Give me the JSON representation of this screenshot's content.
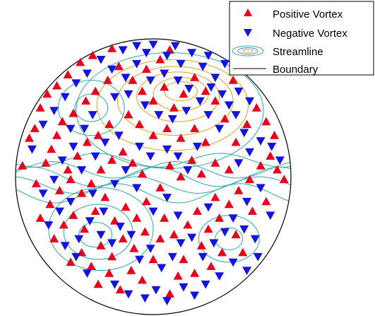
{
  "chart_data": {
    "type": "scatter",
    "title": "",
    "xlabel": "",
    "ylabel": "",
    "grid": false,
    "legend_position": "top-right",
    "boundary": {
      "shape": "circle",
      "center": [
        0,
        0
      ],
      "radius": 1.0
    },
    "legend": {
      "positive": "Positive Vortex",
      "negative": "Negative Vortex",
      "streamline": "Streamline",
      "boundary": "Boundary"
    },
    "colors": {
      "positive": "#e8001a",
      "negative": "#1414dc",
      "boundary": "#000000",
      "streamline_cool": "#2fa7a7",
      "streamline_warm": "#e0a020"
    },
    "series": [
      {
        "name": "Positive Vortex",
        "marker": "triangle-up",
        "points": [
          [
            -0.95,
            0.08
          ],
          [
            -0.9,
            0.28
          ],
          [
            -0.86,
            0.35
          ],
          [
            -0.82,
            0.5
          ],
          [
            -0.77,
            0.6
          ],
          [
            -0.7,
            0.66
          ],
          [
            -0.62,
            0.74
          ],
          [
            -0.53,
            0.83
          ],
          [
            -0.44,
            0.88
          ],
          [
            -0.3,
            0.93
          ],
          [
            -0.85,
            -0.05
          ],
          [
            -0.78,
            0.1
          ],
          [
            -0.74,
            0.2
          ],
          [
            -0.7,
            0.3
          ],
          [
            -0.66,
            0.4
          ],
          [
            -0.58,
            0.46
          ],
          [
            -0.49,
            0.55
          ],
          [
            -0.42,
            0.62
          ],
          [
            -0.33,
            0.7
          ],
          [
            -0.25,
            0.8
          ],
          [
            -0.62,
            0.05
          ],
          [
            -0.55,
            0.15
          ],
          [
            -0.48,
            0.25
          ],
          [
            -0.4,
            0.3
          ],
          [
            -0.32,
            0.38
          ],
          [
            -0.82,
            -0.3
          ],
          [
            -0.75,
            -0.2
          ],
          [
            -0.68,
            -0.1
          ],
          [
            -0.6,
            -0.02
          ],
          [
            -0.52,
            -0.12
          ],
          [
            -0.45,
            -0.05
          ],
          [
            -0.38,
            0.05
          ],
          [
            -0.3,
            0.12
          ],
          [
            -0.22,
            0.18
          ],
          [
            -0.15,
            0.1
          ],
          [
            -0.08,
            0.02
          ],
          [
            -0.72,
            -0.45
          ],
          [
            -0.65,
            -0.35
          ],
          [
            -0.58,
            -0.28
          ],
          [
            -0.5,
            -0.38
          ],
          [
            -0.42,
            -0.25
          ],
          [
            -0.35,
            -0.15
          ],
          [
            -0.28,
            -0.32
          ],
          [
            -0.2,
            -0.22
          ],
          [
            -0.12,
            -0.3
          ],
          [
            -0.05,
            -0.18
          ],
          [
            -0.6,
            -0.62
          ],
          [
            -0.52,
            -0.55
          ],
          [
            -0.45,
            -0.65
          ],
          [
            -0.38,
            -0.5
          ],
          [
            -0.3,
            -0.58
          ],
          [
            -0.22,
            -0.45
          ],
          [
            -0.14,
            -0.52
          ],
          [
            -0.06,
            -0.4
          ],
          [
            -0.4,
            -0.78
          ],
          [
            -0.32,
            -0.7
          ],
          [
            -0.24,
            -0.82
          ],
          [
            -0.16,
            -0.68
          ],
          [
            -0.08,
            -0.75
          ],
          [
            0.0,
            -0.6
          ],
          [
            0.05,
            -0.45
          ],
          [
            0.08,
            -0.3
          ],
          [
            0.12,
            -0.85
          ],
          [
            0.18,
            -0.72
          ],
          [
            0.22,
            -0.6
          ],
          [
            0.3,
            -0.7
          ],
          [
            0.35,
            -0.5
          ],
          [
            0.15,
            -0.42
          ],
          [
            0.25,
            -0.35
          ],
          [
            0.32,
            -0.25
          ],
          [
            0.4,
            -0.38
          ],
          [
            0.48,
            -0.3
          ],
          [
            0.45,
            -0.15
          ],
          [
            0.55,
            -0.2
          ],
          [
            0.62,
            -0.1
          ],
          [
            0.7,
            -0.02
          ],
          [
            0.78,
            0.08
          ],
          [
            0.85,
            0.15
          ],
          [
            0.9,
            0.05
          ],
          [
            0.95,
            -0.02
          ],
          [
            0.82,
            -0.18
          ],
          [
            0.72,
            -0.25
          ],
          [
            0.6,
            -0.42
          ],
          [
            0.5,
            -0.55
          ],
          [
            0.42,
            -0.65
          ],
          [
            0.65,
            -0.55
          ],
          [
            0.55,
            0.05
          ],
          [
            0.45,
            0.1
          ],
          [
            0.35,
            0.02
          ],
          [
            0.28,
            0.12
          ],
          [
            0.2,
            0.0
          ],
          [
            0.12,
            0.08
          ],
          [
            0.05,
            -0.08
          ],
          [
            0.6,
            0.25
          ],
          [
            0.68,
            0.38
          ],
          [
            0.75,
            0.5
          ],
          [
            0.82,
            0.4
          ],
          [
            0.88,
            0.3
          ],
          [
            0.52,
            0.42
          ],
          [
            0.45,
            0.55
          ],
          [
            0.38,
            0.62
          ],
          [
            0.58,
            0.7
          ],
          [
            0.3,
            0.72
          ],
          [
            0.22,
            0.6
          ],
          [
            0.15,
            0.5
          ],
          [
            0.08,
            0.65
          ],
          [
            0.0,
            0.55
          ],
          [
            -0.08,
            0.62
          ],
          [
            -0.15,
            0.7
          ],
          [
            -0.05,
            0.78
          ],
          [
            0.05,
            0.85
          ],
          [
            0.12,
            0.92
          ],
          [
            -0.18,
            0.45
          ],
          [
            -0.1,
            0.38
          ],
          [
            0.0,
            0.3
          ],
          [
            0.1,
            0.35
          ],
          [
            0.2,
            0.28
          ],
          [
            0.3,
            0.35
          ],
          [
            0.38,
            0.25
          ]
        ]
      },
      {
        "name": "Negative Vortex",
        "marker": "triangle-down",
        "points": [
          [
            -0.88,
            0.2
          ],
          [
            -0.8,
            0.38
          ],
          [
            -0.72,
            0.48
          ],
          [
            -0.64,
            0.58
          ],
          [
            -0.56,
            0.68
          ],
          [
            -0.48,
            0.75
          ],
          [
            -0.38,
            0.85
          ],
          [
            -0.22,
            0.92
          ],
          [
            -0.12,
            0.95
          ],
          [
            0.0,
            0.96
          ],
          [
            0.1,
            0.88
          ],
          [
            0.2,
            0.82
          ],
          [
            0.28,
            0.9
          ],
          [
            0.36,
            0.8
          ],
          [
            0.45,
            0.72
          ],
          [
            0.52,
            0.82
          ],
          [
            -0.3,
            0.78
          ],
          [
            -0.2,
            0.72
          ],
          [
            -0.12,
            0.82
          ],
          [
            -0.02,
            0.7
          ],
          [
            0.08,
            0.75
          ],
          [
            0.18,
            0.7
          ],
          [
            0.26,
            0.64
          ],
          [
            0.34,
            0.55
          ],
          [
            0.42,
            0.65
          ],
          [
            0.5,
            0.6
          ],
          [
            -0.28,
            0.58
          ],
          [
            -0.18,
            0.6
          ],
          [
            -0.06,
            0.52
          ],
          [
            0.04,
            0.45
          ],
          [
            0.14,
            0.42
          ],
          [
            0.24,
            0.48
          ],
          [
            -0.8,
            -0.12
          ],
          [
            -0.72,
            -0.02
          ],
          [
            -0.66,
            0.12
          ],
          [
            -0.58,
            0.22
          ],
          [
            -0.5,
            0.35
          ],
          [
            -0.44,
            0.45
          ],
          [
            -0.76,
            -0.35
          ],
          [
            -0.68,
            -0.25
          ],
          [
            -0.6,
            -0.18
          ],
          [
            -0.54,
            -0.45
          ],
          [
            -0.46,
            -0.32
          ],
          [
            -0.38,
            -0.42
          ],
          [
            -0.3,
            -0.48
          ],
          [
            -0.24,
            -0.36
          ],
          [
            -0.16,
            -0.42
          ],
          [
            -0.1,
            -0.6
          ],
          [
            -0.02,
            -0.52
          ],
          [
            0.06,
            -0.66
          ],
          [
            0.14,
            -0.58
          ],
          [
            0.2,
            -0.48
          ],
          [
            0.28,
            -0.44
          ],
          [
            0.36,
            -0.58
          ],
          [
            0.44,
            -0.48
          ],
          [
            0.52,
            -0.4
          ],
          [
            0.58,
            -0.3
          ],
          [
            0.66,
            -0.38
          ],
          [
            0.74,
            -0.45
          ],
          [
            0.58,
            -0.62
          ],
          [
            0.48,
            -0.72
          ],
          [
            0.38,
            -0.78
          ],
          [
            0.3,
            -0.86
          ],
          [
            0.22,
            -0.8
          ],
          [
            0.1,
            -0.9
          ],
          [
            0.02,
            -0.82
          ],
          [
            -0.06,
            -0.88
          ],
          [
            -0.18,
            -0.85
          ],
          [
            -0.28,
            -0.78
          ],
          [
            -0.48,
            -0.7
          ],
          [
            -0.56,
            -0.58
          ],
          [
            -0.64,
            -0.5
          ],
          [
            0.62,
            0.1
          ],
          [
            0.7,
            0.18
          ],
          [
            0.78,
            0.26
          ],
          [
            0.86,
            0.22
          ],
          [
            0.92,
            0.12
          ],
          [
            0.66,
            0.32
          ],
          [
            0.6,
            0.45
          ],
          [
            0.7,
            0.55
          ],
          [
            0.62,
            0.62
          ],
          [
            0.55,
            0.52
          ],
          [
            0.48,
            0.35
          ],
          [
            0.4,
            0.45
          ],
          [
            0.32,
            0.22
          ],
          [
            0.25,
            0.05
          ],
          [
            0.18,
            0.15
          ],
          [
            0.1,
            0.2
          ],
          [
            -0.02,
            0.15
          ],
          [
            -0.1,
            0.22
          ],
          [
            -0.25,
            0.3
          ],
          [
            -0.35,
            0.25
          ],
          [
            -0.42,
            0.15
          ],
          [
            -0.2,
            0.05
          ],
          [
            -0.28,
            -0.05
          ],
          [
            -0.12,
            -0.08
          ],
          [
            0.0,
            -0.25
          ],
          [
            0.1,
            -0.15
          ],
          [
            0.18,
            -0.28
          ],
          [
            0.4,
            -0.22
          ],
          [
            0.68,
            -0.18
          ],
          [
            0.78,
            -0.08
          ],
          [
            0.85,
            -0.28
          ],
          [
            0.76,
            -0.58
          ],
          [
            0.68,
            -0.68
          ],
          [
            -0.05,
            0.9
          ],
          [
            0.16,
            0.95
          ],
          [
            0.4,
            0.88
          ],
          [
            -0.6,
            0.35
          ],
          [
            -0.52,
            0.05
          ],
          [
            -0.36,
            -0.25
          ],
          [
            -0.44,
            -0.12
          ]
        ]
      }
    ],
    "streamlines": [
      {
        "type": "closed",
        "center": [
          0.2,
          0.62
        ],
        "rx": 0.12,
        "ry": 0.07,
        "tone": "warm"
      },
      {
        "type": "closed",
        "center": [
          0.2,
          0.6
        ],
        "rx": 0.2,
        "ry": 0.12,
        "tone": "warm"
      },
      {
        "type": "closed",
        "center": [
          0.18,
          0.58
        ],
        "rx": 0.3,
        "ry": 0.18,
        "tone": "warm"
      },
      {
        "type": "closed",
        "center": [
          0.16,
          0.55
        ],
        "rx": 0.42,
        "ry": 0.25,
        "tone": "warm"
      },
      {
        "type": "closed",
        "center": [
          0.14,
          0.52
        ],
        "rx": 0.55,
        "ry": 0.33,
        "tone": "warm"
      },
      {
        "type": "closed",
        "center": [
          0.12,
          0.48
        ],
        "rx": 0.68,
        "ry": 0.42,
        "tone": "cool"
      },
      {
        "type": "closed",
        "center": [
          -0.42,
          -0.42
        ],
        "rx": 0.12,
        "ry": 0.09,
        "tone": "cool"
      },
      {
        "type": "closed",
        "center": [
          -0.4,
          -0.4
        ],
        "rx": 0.25,
        "ry": 0.2,
        "tone": "cool"
      },
      {
        "type": "closed",
        "center": [
          -0.38,
          -0.38
        ],
        "rx": 0.38,
        "ry": 0.3,
        "tone": "cool"
      },
      {
        "type": "closed",
        "center": [
          0.55,
          -0.45
        ],
        "rx": 0.1,
        "ry": 0.08,
        "tone": "cool"
      },
      {
        "type": "closed",
        "center": [
          0.55,
          -0.45
        ],
        "rx": 0.22,
        "ry": 0.17,
        "tone": "cool"
      },
      {
        "type": "closed",
        "center": [
          -0.45,
          0.5
        ],
        "rx": 0.12,
        "ry": 0.1,
        "tone": "cool"
      },
      {
        "type": "closed",
        "center": [
          -0.45,
          0.5
        ],
        "rx": 0.24,
        "ry": 0.2,
        "tone": "cool"
      },
      {
        "type": "open",
        "y": 0.05,
        "amp": 0.06,
        "tone": "cool"
      },
      {
        "type": "open",
        "y": 0.0,
        "amp": 0.07,
        "tone": "cool"
      },
      {
        "type": "open",
        "y": -0.06,
        "amp": 0.06,
        "tone": "cool"
      },
      {
        "type": "open",
        "y": -0.12,
        "amp": 0.07,
        "tone": "cool"
      },
      {
        "type": "open",
        "y": 0.12,
        "amp": 0.05,
        "tone": "cool"
      }
    ]
  }
}
